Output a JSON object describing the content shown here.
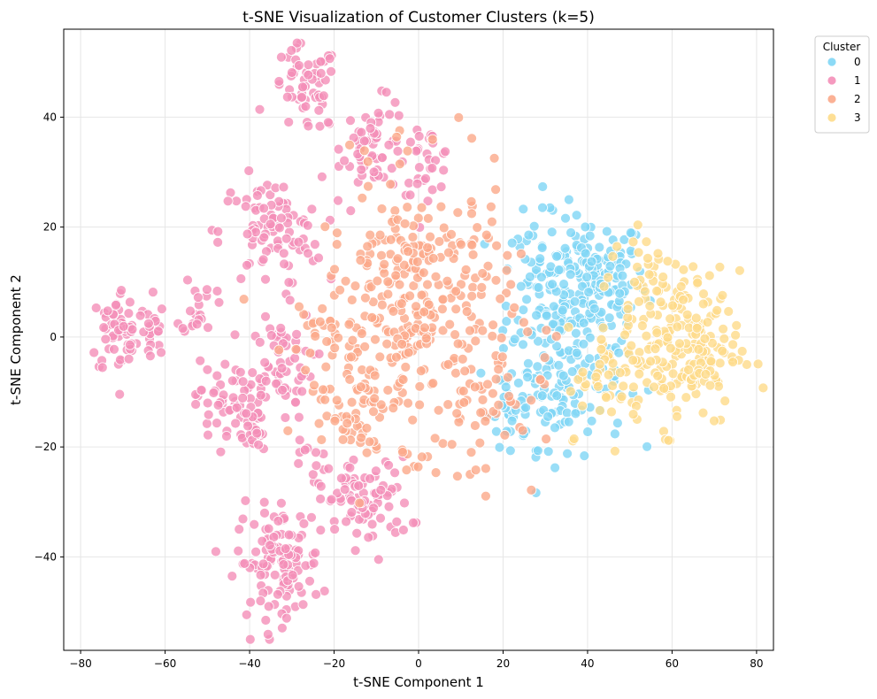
{
  "chart_data": {
    "type": "scatter",
    "title": "t-SNE Visualization of Customer Clusters (k=5)",
    "xlabel": "t-SNE Component 1",
    "ylabel": "t-SNE Component 2",
    "xlim": [
      -84,
      84
    ],
    "ylim": [
      -57,
      56
    ],
    "xticks": [
      -80,
      -60,
      -40,
      -20,
      0,
      20,
      40,
      60,
      80
    ],
    "yticks": [
      -40,
      -20,
      0,
      20,
      40
    ],
    "xtick_labels": [
      "−80",
      "−60",
      "−40",
      "−20",
      "0",
      "20",
      "40",
      "60",
      "80"
    ],
    "ytick_labels": [
      "−40",
      "−20",
      "0",
      "20",
      "40"
    ],
    "grid": true,
    "legend": {
      "title": "Cluster",
      "position": "top-right-outside"
    },
    "series": [
      {
        "name": "0",
        "color": "#7fd6f5",
        "clusters": [
          {
            "center": [
              40,
              10
            ],
            "spread": [
              7,
              6
            ],
            "count": 180
          },
          {
            "center": [
              35,
              -8
            ],
            "spread": [
              7,
              6
            ],
            "count": 110
          },
          {
            "center": [
              28,
              4
            ],
            "spread": [
              5,
              10
            ],
            "count": 60
          },
          {
            "center": [
              22,
              -14
            ],
            "spread": [
              3,
              6
            ],
            "count": 25
          }
        ]
      },
      {
        "name": "1",
        "color": "#f48fb8",
        "clusters": [
          {
            "center": [
              -27,
              45
            ],
            "spread": [
              4,
              4
            ],
            "count": 60
          },
          {
            "center": [
              -10,
              35
            ],
            "spread": [
              4,
              4
            ],
            "count": 60
          },
          {
            "center": [
              2,
              32
            ],
            "spread": [
              3,
              3
            ],
            "count": 30
          },
          {
            "center": [
              -35,
              19
            ],
            "spread": [
              6,
              5
            ],
            "count": 90
          },
          {
            "center": [
              -70,
              1
            ],
            "spread": [
              4,
              4
            ],
            "count": 60
          },
          {
            "center": [
              -64,
              1
            ],
            "spread": [
              2,
              4
            ],
            "count": 20
          },
          {
            "center": [
              -52,
              6
            ],
            "spread": [
              2,
              3
            ],
            "count": 20
          },
          {
            "center": [
              -33,
              -5
            ],
            "spread": [
              4,
              5
            ],
            "count": 60
          },
          {
            "center": [
              -45,
              -12
            ],
            "spread": [
              4,
              4
            ],
            "count": 60
          },
          {
            "center": [
              -39,
              -17
            ],
            "spread": [
              2,
              3
            ],
            "count": 20
          },
          {
            "center": [
              -12,
              -30
            ],
            "spread": [
              5,
              4
            ],
            "count": 80
          },
          {
            "center": [
              -33,
              -41
            ],
            "spread": [
              5,
              5
            ],
            "count": 120
          },
          {
            "center": [
              -24,
              -25
            ],
            "spread": [
              3,
              3
            ],
            "count": 15
          }
        ]
      },
      {
        "name": "2",
        "color": "#fba98a",
        "clusters": [
          {
            "center": [
              0,
              5
            ],
            "spread": [
              11,
              12
            ],
            "count": 330
          },
          {
            "center": [
              -15,
              -10
            ],
            "spread": [
              6,
              6
            ],
            "count": 60
          },
          {
            "center": [
              15,
              -15
            ],
            "spread": [
              7,
              6
            ],
            "count": 40
          },
          {
            "center": [
              -22,
              2
            ],
            "spread": [
              3,
              5
            ],
            "count": 20
          }
        ]
      },
      {
        "name": "3",
        "color": "#fedb8a",
        "clusters": [
          {
            "center": [
              62,
              -2
            ],
            "spread": [
              7,
              7
            ],
            "count": 200
          },
          {
            "center": [
              54,
              12
            ],
            "spread": [
              4,
              5
            ],
            "count": 30
          },
          {
            "center": [
              45,
              -8
            ],
            "spread": [
              5,
              5
            ],
            "count": 40
          }
        ]
      }
    ]
  }
}
